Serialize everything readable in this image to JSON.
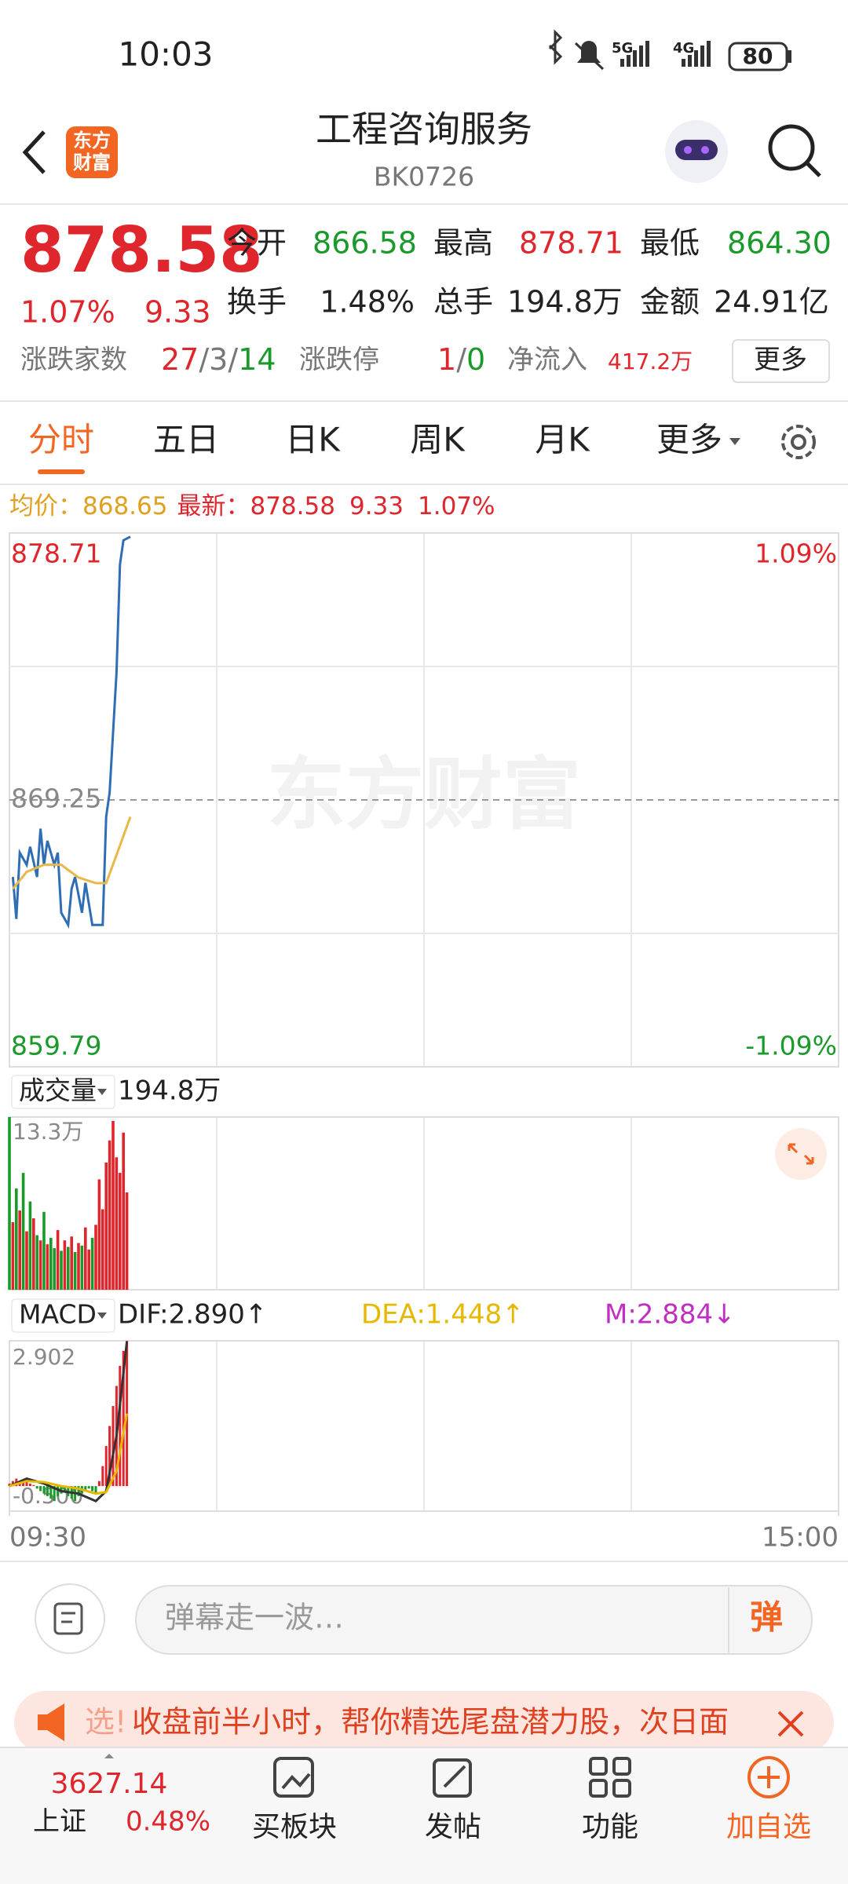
{
  "status_bar": {
    "time": "10:03",
    "battery": "80"
  },
  "header": {
    "title": "工程咨询服务",
    "code": "BK0726",
    "logo": [
      "东方",
      "财富"
    ]
  },
  "quote": {
    "price": "878.58",
    "change_pct": "1.07%",
    "change": "9.33",
    "stats": [
      {
        "label": "今开",
        "value": "866.58"
      },
      {
        "label": "最高",
        "value": "878.71"
      },
      {
        "label": "最低",
        "value": "864.30"
      },
      {
        "label": "换手",
        "value": "1.48%"
      },
      {
        "label": "总手",
        "value": "194.8万"
      },
      {
        "label": "金额",
        "value": "24.91亿"
      }
    ],
    "breadth": {
      "label": "涨跌家数",
      "up": "27",
      "flat": "3",
      "down": "14",
      "sep": "/"
    },
    "limit": {
      "label": "涨跌停",
      "up": "1",
      "down": "0",
      "sep": "/"
    },
    "net_inflow": {
      "label": "净流入",
      "value": "417.2万"
    },
    "more": "更多"
  },
  "tabs": [
    "分时",
    "五日",
    "日K",
    "周K",
    "月K",
    "更多"
  ],
  "info": {
    "avg_label": "均价：",
    "avg": "868.65",
    "latest_label": "最新：",
    "latest": "878.58",
    "change": "9.33",
    "change_pct": "1.07%"
  },
  "chart_data": [
    {
      "type": "line",
      "watermark": "东方财富",
      "xlim": [
        0,
        240
      ],
      "xticks": [
        {
          "value": 0,
          "label": "09:30"
        },
        {
          "value": 240,
          "label": "15:00"
        }
      ],
      "ylim": [
        859.79,
        878.71
      ],
      "yticks": [
        878.71,
        869.25,
        859.79
      ],
      "y2lim": [
        -1.09,
        1.09
      ],
      "y2ticks": [
        {
          "value": 1.09,
          "label": "1.09%"
        },
        {
          "value": -1.09,
          "label": "-1.09%"
        }
      ],
      "series": [
        {
          "color": "#2f6db5",
          "x": [
            1,
            2,
            3,
            5,
            6,
            8,
            9,
            10,
            11,
            13,
            14,
            15,
            17,
            18,
            19,
            21,
            22,
            24,
            25,
            27,
            28,
            29,
            31,
            32,
            33,
            35
          ],
          "values": [
            866.52,
            865.03,
            867.38,
            866.95,
            867.59,
            866.52,
            868.23,
            866.95,
            867.8,
            866.95,
            867.38,
            865.25,
            864.82,
            866.1,
            866.52,
            865.25,
            866.31,
            864.82,
            864.82,
            864.82,
            868.65,
            869.51,
            873.77,
            877.6,
            878.45,
            878.58
          ]
        },
        {
          "color": "#e8b84a",
          "x": [
            1,
            5,
            10,
            15,
            20,
            25,
            28,
            31,
            35
          ],
          "values": [
            866.1,
            866.7,
            866.95,
            866.95,
            866.5,
            866.3,
            866.3,
            867.3,
            868.65
          ]
        }
      ]
    },
    {
      "type": "bar",
      "label": "成交量",
      "total": "194.8万",
      "xlim": [
        0,
        240
      ],
      "ylim": [
        0,
        13.3
      ],
      "yticks": [
        {
          "value": 13.3,
          "label": "13.3万"
        }
      ],
      "x": [
        0,
        1,
        2,
        3,
        4,
        5,
        6,
        7,
        8,
        9,
        10,
        11,
        12,
        13,
        14,
        15,
        16,
        17,
        18,
        19,
        20,
        21,
        22,
        23,
        24,
        25,
        26,
        27,
        28,
        29,
        30,
        31,
        32,
        33,
        34
      ],
      "values": [
        13.3,
        5.2,
        7.8,
        6.1,
        9.0,
        4.5,
        6.8,
        5.5,
        4.2,
        3.8,
        6.0,
        3.5,
        4.0,
        3.2,
        4.6,
        3.0,
        3.8,
        3.3,
        4.1,
        2.9,
        3.6,
        3.4,
        4.8,
        3.1,
        4.0,
        5.0,
        8.5,
        6.2,
        9.8,
        11.5,
        13.0,
        10.2,
        9.0,
        12.1,
        7.5
      ],
      "colors": [
        "#1a9a2a",
        "#e0262d",
        "#1a9a2a",
        "#e0262d",
        "#1a9a2a",
        "#e0262d",
        "#1a9a2a",
        "#e0262d",
        "#1a9a2a",
        "#e0262d",
        "#1a9a2a",
        "#e0262d",
        "#1a9a2a",
        "#1a9a2a",
        "#e0262d",
        "#1a9a2a",
        "#e0262d",
        "#1a9a2a",
        "#e0262d",
        "#1a9a2a",
        "#e0262d",
        "#1a9a2a",
        "#e0262d",
        "#e0262d",
        "#1a9a2a",
        "#e0262d",
        "#e0262d",
        "#e0262d",
        "#e0262d",
        "#e0262d",
        "#e0262d",
        "#e0262d",
        "#e0262d",
        "#e0262d",
        "#e0262d"
      ]
    },
    {
      "type": "bar",
      "label": "MACD",
      "dif_label": "DIF:2.890↑",
      "dea_label": "DEA:1.448↑",
      "m_label": "M:2.884↓",
      "xlim": [
        0,
        240
      ],
      "ylim": [
        -0.5,
        2.902
      ],
      "yticks": [
        2.902,
        {
          "value": -0.5,
          "label": "-0.500"
        }
      ],
      "up_color": "#e0262d",
      "down_color": "#1a9a2a",
      "x": [
        0,
        1,
        2,
        3,
        4,
        5,
        6,
        7,
        8,
        9,
        10,
        11,
        12,
        13,
        14,
        15,
        16,
        17,
        18,
        19,
        20,
        21,
        22,
        23,
        24,
        25,
        26,
        27,
        28,
        29,
        30,
        31,
        32,
        33,
        34
      ],
      "values": [
        0.05,
        0.1,
        0.15,
        0.1,
        0.12,
        0.08,
        0.05,
        0.02,
        -0.05,
        -0.1,
        -0.15,
        -0.2,
        -0.25,
        -0.3,
        -0.2,
        -0.15,
        -0.1,
        -0.2,
        -0.25,
        -0.3,
        -0.2,
        -0.15,
        -0.1,
        -0.05,
        -0.1,
        -0.15,
        0.1,
        0.4,
        0.8,
        1.2,
        1.6,
        2.0,
        2.4,
        2.7,
        2.9
      ],
      "series": [
        {
          "color": "#333333",
          "x": [
            0,
            5,
            10,
            15,
            20,
            25,
            28,
            31,
            34
          ],
          "values": [
            0,
            0.15,
            0.05,
            -0.1,
            -0.15,
            -0.3,
            -0.1,
            1.0,
            2.89
          ]
        },
        {
          "color": "#e6b800",
          "x": [
            0,
            5,
            10,
            15,
            20,
            25,
            28,
            31,
            34
          ],
          "values": [
            0,
            0.1,
            0.08,
            0,
            -0.05,
            -0.15,
            -0.12,
            0.3,
            1.448
          ]
        }
      ]
    }
  ],
  "comment": {
    "placeholder": "弹幕走一波…",
    "button": "弹"
  },
  "banner": {
    "prefix": "选!",
    "text": "收盘前半小时，帮你精选尾盘潜力股，次日面"
  },
  "nav": {
    "index_value": "3627.14",
    "index_name": "上证",
    "index_change": "0.48%",
    "items": [
      "买板块",
      "发帖",
      "功能",
      "加自选"
    ]
  }
}
